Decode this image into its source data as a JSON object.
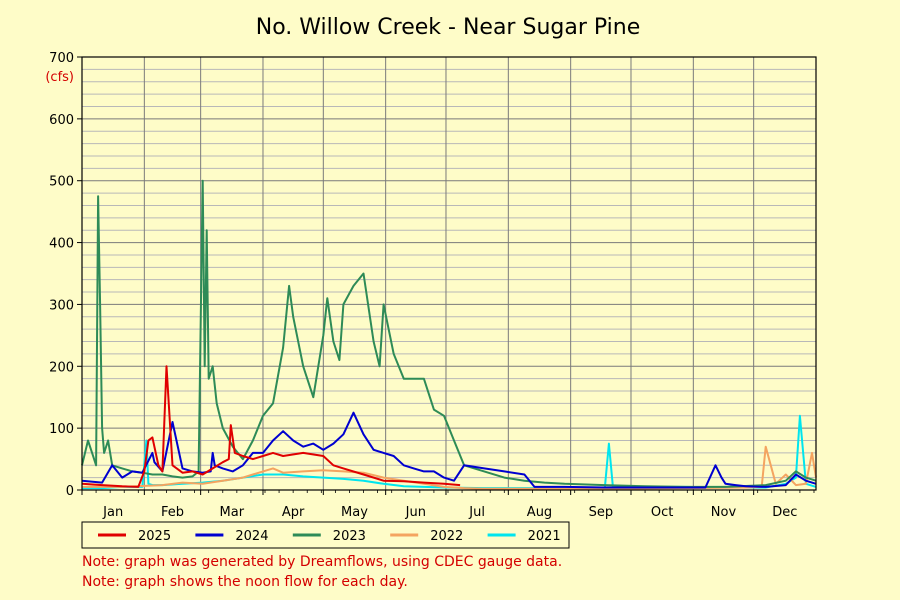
{
  "chart_data": {
    "type": "line",
    "title": "No. Willow Creek - Near Sugar Pine",
    "y_unit": "(cfs)",
    "ylim": [
      0,
      700
    ],
    "y_ticks": [
      0,
      100,
      200,
      300,
      400,
      500,
      600,
      700
    ],
    "x_range_days": [
      0,
      365
    ],
    "months": [
      "Jan",
      "Feb",
      "Mar",
      "Apr",
      "May",
      "Jun",
      "Jul",
      "Aug",
      "Sep",
      "Oct",
      "Nov",
      "Dec"
    ],
    "grid": true,
    "legend_position": "bottom",
    "series": [
      {
        "name": "2025",
        "color": "#e00000",
        "x": [
          0,
          10,
          20,
          28,
          31,
          33,
          35,
          38,
          40,
          42,
          45,
          50,
          55,
          60,
          65,
          70,
          73,
          74,
          76,
          80,
          85,
          90,
          95,
          100,
          110,
          120,
          125,
          130,
          140,
          150,
          160,
          170,
          180,
          188
        ],
        "y": [
          10,
          8,
          6,
          5,
          30,
          80,
          85,
          40,
          30,
          200,
          40,
          28,
          30,
          25,
          35,
          45,
          50,
          105,
          60,
          55,
          50,
          55,
          60,
          55,
          60,
          55,
          40,
          35,
          25,
          15,
          14,
          12,
          10,
          8
        ]
      },
      {
        "name": "2024",
        "color": "#0000d0",
        "x": [
          0,
          10,
          15,
          20,
          25,
          30,
          35,
          36,
          40,
          45,
          50,
          55,
          60,
          64,
          65,
          66,
          70,
          75,
          80,
          85,
          90,
          95,
          100,
          105,
          110,
          115,
          120,
          125,
          130,
          135,
          140,
          145,
          150,
          155,
          160,
          165,
          170,
          175,
          180,
          185,
          190,
          200,
          210,
          220,
          225,
          240,
          260,
          280,
          300,
          310,
          315,
          318,
          320,
          325,
          330,
          340,
          350,
          355,
          360,
          365
        ],
        "y": [
          15,
          12,
          40,
          20,
          30,
          28,
          60,
          45,
          30,
          110,
          35,
          30,
          28,
          30,
          60,
          40,
          35,
          30,
          40,
          60,
          60,
          80,
          95,
          80,
          70,
          75,
          65,
          75,
          90,
          125,
          90,
          65,
          60,
          55,
          40,
          35,
          30,
          30,
          20,
          15,
          40,
          35,
          30,
          25,
          5,
          5,
          4,
          4,
          4,
          4,
          40,
          20,
          10,
          8,
          6,
          5,
          8,
          25,
          15,
          10
        ]
      },
      {
        "name": "2023",
        "color": "#2e8b57",
        "x": [
          0,
          3,
          5,
          7,
          8,
          9,
          10,
          11,
          13,
          15,
          20,
          25,
          30,
          35,
          40,
          45,
          50,
          55,
          58,
          60,
          61,
          62,
          63,
          65,
          67,
          70,
          75,
          80,
          85,
          90,
          95,
          100,
          103,
          105,
          110,
          115,
          120,
          122,
          125,
          128,
          130,
          135,
          140,
          145,
          148,
          150,
          155,
          160,
          165,
          170,
          175,
          180,
          185,
          190,
          200,
          210,
          220,
          230,
          240,
          260,
          280,
          300,
          320,
          340,
          350,
          355,
          360,
          365
        ],
        "y": [
          40,
          80,
          60,
          40,
          475,
          300,
          100,
          60,
          80,
          40,
          35,
          30,
          28,
          25,
          25,
          22,
          20,
          22,
          30,
          500,
          200,
          420,
          180,
          200,
          140,
          100,
          70,
          50,
          80,
          120,
          140,
          230,
          330,
          280,
          200,
          150,
          250,
          310,
          240,
          210,
          300,
          330,
          350,
          240,
          200,
          300,
          220,
          180,
          180,
          180,
          130,
          120,
          80,
          40,
          30,
          20,
          15,
          12,
          10,
          8,
          6,
          5,
          5,
          8,
          15,
          30,
          20,
          15
        ]
      },
      {
        "name": "2022",
        "color": "#f4a460",
        "x": [
          0,
          20,
          40,
          50,
          60,
          70,
          80,
          85,
          90,
          95,
          100,
          110,
          120,
          130,
          140,
          150,
          160,
          170,
          180,
          190,
          200,
          250,
          300,
          330,
          338,
          340,
          345,
          350,
          355,
          360,
          363,
          365
        ],
        "y": [
          5,
          5,
          8,
          12,
          10,
          15,
          20,
          25,
          30,
          35,
          28,
          30,
          32,
          30,
          28,
          20,
          15,
          10,
          5,
          3,
          2,
          2,
          3,
          4,
          5,
          70,
          10,
          25,
          8,
          10,
          60,
          20
        ]
      },
      {
        "name": "2021",
        "color": "#00e5ee",
        "x": [
          0,
          10,
          20,
          30,
          32,
          33,
          35,
          40,
          50,
          60,
          70,
          80,
          90,
          100,
          110,
          120,
          130,
          140,
          150,
          160,
          170,
          180,
          200,
          250,
          260,
          262,
          264,
          280,
          300,
          320,
          340,
          350,
          355,
          357,
          360,
          365
        ],
        "y": [
          3,
          3,
          5,
          5,
          80,
          10,
          8,
          8,
          10,
          12,
          15,
          20,
          25,
          25,
          22,
          20,
          18,
          15,
          10,
          6,
          5,
          4,
          3,
          3,
          3,
          75,
          5,
          5,
          5,
          4,
          4,
          10,
          20,
          120,
          10,
          5
        ]
      }
    ],
    "notes": [
      "Note: graph was generated by Dreamflows, using CDEC gauge data.",
      "Note: graph shows the noon flow for each day."
    ]
  }
}
